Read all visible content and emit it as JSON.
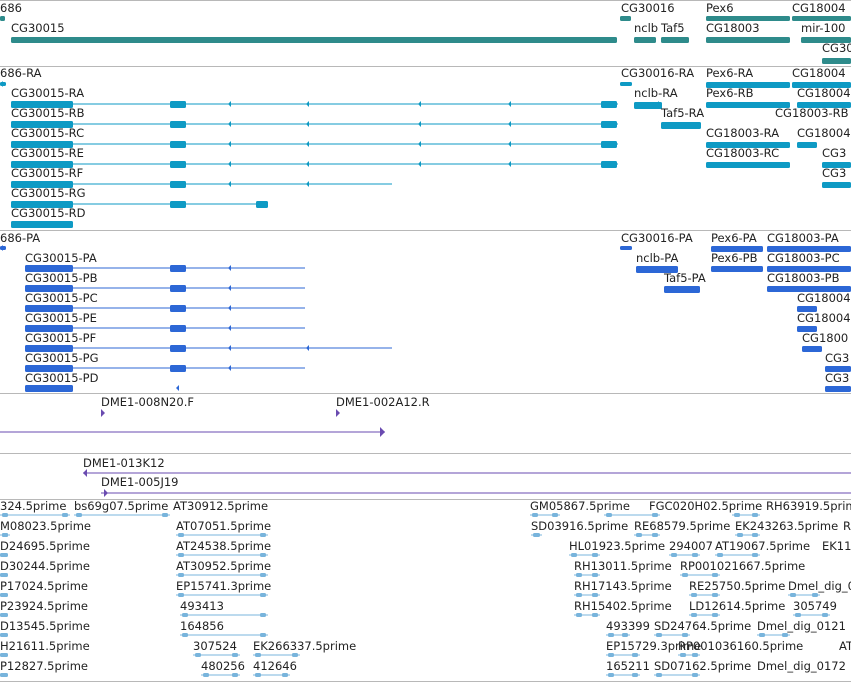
{
  "colors": {
    "gene": "#2e8b8b",
    "rna": "#0e9ac4",
    "protein": "#2c67d6",
    "clone": "#6a4bb0",
    "est": "#78b4dc",
    "divider": "#b8b8b8"
  },
  "tracks": {
    "genes": {
      "labels": [
        "686",
        "CG30015",
        "CG30016",
        "nclb",
        "Taf5",
        "Pex6",
        "CG18003",
        "CG18004",
        "mir-100",
        "CG30"
      ]
    },
    "transcripts": {
      "labels": [
        "686-RA",
        "CG30015-RA",
        "CG30015-RB",
        "CG30015-RC",
        "CG30015-RE",
        "CG30015-RF",
        "CG30015-RG",
        "CG30015-RD",
        "CG30016-RA",
        "nclb-RA",
        "Taf5-RA",
        "Pex6-RA",
        "Pex6-RB",
        "CG18004",
        "CG18004",
        "CG18003-RB",
        "CG18003-RA",
        "CG18003-RC",
        "CG18004",
        "CG3",
        "CG3"
      ]
    },
    "proteins": {
      "labels": [
        "686-PA",
        "CG30015-PA",
        "CG30015-PB",
        "CG30015-PC",
        "CG30015-PE",
        "CG30015-PF",
        "CG30015-PG",
        "CG30015-PD",
        "CG30016-PA",
        "nclb-PA",
        "Taf5-PA",
        "Pex6-PA",
        "Pex6-PB",
        "CG18003-PA",
        "CG18003-PC",
        "CG18003-PB",
        "CG18004",
        "CG18004",
        "CG1800",
        "CG3",
        "CG3"
      ]
    },
    "clones_a": {
      "labels": [
        "DME1-008N20.F",
        "DME1-002A12.R"
      ]
    },
    "clones_b": {
      "labels": [
        "DME1-013K12",
        "DME1-005J19"
      ]
    },
    "ests": {
      "labels": [
        "324.5prime",
        "bs69g07.5prime",
        "AT30912.5prime",
        "GM05867.5prime",
        "FGC020H02.5prime",
        "RH63919.5prime",
        "M08023.5prime",
        "AT07051.5prime",
        "SD03916.5prime",
        "RE68579.5prime",
        "EK243263.5prime",
        "R",
        "D24695.5prime",
        "AT24538.5prime",
        "HL01923.5prime",
        "294007",
        "AT19067.5prime",
        "EK11",
        "D30244.5prime",
        "AT30952.5prime",
        "RH13011.5prime",
        "RP001021667.5prime",
        "P17024.5prime",
        "EP15741.3prime",
        "RH17143.5prime",
        "RE25750.5prime",
        "Dmel_dig_0",
        "P23924.5prime",
        "493413",
        "RH15402.5prime",
        "LD12614.5prime",
        "305749",
        "D13545.5prime",
        "164856",
        "493399",
        "SD24764.5prime",
        "Dmel_dig_0121",
        "H21611.5prime",
        "307524",
        "EK266337.5prime",
        "EP15729.3prime",
        "RP001036160.5prime",
        "AT",
        "P12827.5prime",
        "480256",
        "412646",
        "165211",
        "SD07162.5prime",
        "Dmel_dig_0172"
      ]
    }
  }
}
